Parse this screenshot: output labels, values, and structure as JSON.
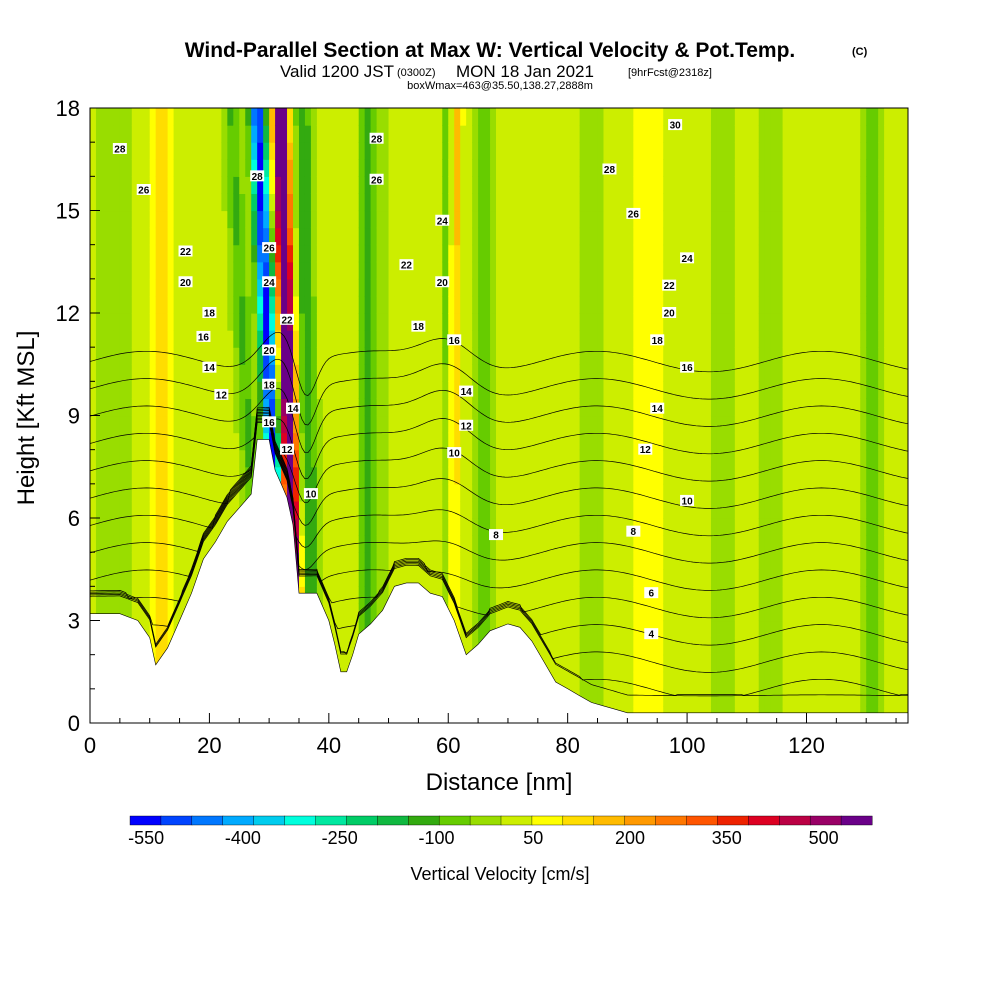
{
  "chart_data": {
    "type": "heatmap",
    "title": "Wind-Parallel Section at Max W: Vertical Velocity & Pot.Temp.",
    "title_mark": "(C)",
    "subtitle_valid": "Valid 1200 JST",
    "subtitle_z": "(0300Z)",
    "subtitle_date": "MON 18 Jan 2021",
    "subtitle_fcst": "[9hrFcst@2318z]",
    "box_line": "boxWmax=463@35.50,138.27,2888m",
    "xlabel": "Distance [nm]",
    "ylabel": "Height [Kft MSL]",
    "xlim": [
      0,
      137
    ],
    "ylim": [
      0,
      18
    ],
    "x_ticks": [
      "0",
      "20",
      "40",
      "60",
      "80",
      "100",
      "120"
    ],
    "x_tick_values": [
      0,
      20,
      40,
      60,
      80,
      100,
      120
    ],
    "y_ticks": [
      "0",
      "3",
      "6",
      "9",
      "12",
      "15",
      "18"
    ],
    "y_tick_values": [
      0,
      3,
      6,
      9,
      12,
      15,
      18
    ],
    "colorbar": {
      "label": "Vertical Velocity [cm/s]",
      "ticks": [
        "-550",
        "-400",
        "-250",
        "-100",
        "50",
        "200",
        "350",
        "500"
      ],
      "tick_values": [
        -550,
        -400,
        -250,
        -100,
        50,
        200,
        350,
        500
      ],
      "range": [
        -575,
        575
      ],
      "colors": [
        "#0000ff",
        "#0044ff",
        "#0077ff",
        "#00aaff",
        "#00ccee",
        "#00ffdd",
        "#00e8a0",
        "#00cc66",
        "#10b840",
        "#33aa10",
        "#66cc00",
        "#99dd00",
        "#ccee00",
        "#ffff00",
        "#ffdd00",
        "#ffbb00",
        "#ff9900",
        "#ff7700",
        "#ff5500",
        "#ee2200",
        "#dd0022",
        "#bb0044",
        "#990066",
        "#6a0088"
      ]
    },
    "terrain_kft": [
      [
        0,
        3.2
      ],
      [
        5,
        3.2
      ],
      [
        8,
        3.0
      ],
      [
        10,
        2.5
      ],
      [
        11,
        1.7
      ],
      [
        13,
        2.2
      ],
      [
        15,
        3.0
      ],
      [
        17,
        3.8
      ],
      [
        19,
        4.8
      ],
      [
        21,
        5.3
      ],
      [
        23,
        5.9
      ],
      [
        25,
        6.3
      ],
      [
        27,
        6.7
      ],
      [
        28,
        8.3
      ],
      [
        30,
        8.3
      ],
      [
        31,
        7.4
      ],
      [
        32,
        7.0
      ],
      [
        33,
        6.6
      ],
      [
        34,
        5.8
      ],
      [
        35,
        3.8
      ],
      [
        36,
        3.8
      ],
      [
        38,
        3.8
      ],
      [
        40,
        3.0
      ],
      [
        41,
        2.3
      ],
      [
        42,
        1.5
      ],
      [
        43,
        1.5
      ],
      [
        44,
        2.0
      ],
      [
        45,
        2.6
      ],
      [
        47,
        2.9
      ],
      [
        49,
        3.3
      ],
      [
        51,
        4.0
      ],
      [
        53,
        4.1
      ],
      [
        55,
        4.1
      ],
      [
        57,
        3.8
      ],
      [
        59,
        3.7
      ],
      [
        61,
        3.0
      ],
      [
        62,
        2.5
      ],
      [
        63,
        2.0
      ],
      [
        65,
        2.3
      ],
      [
        67,
        2.7
      ],
      [
        70,
        2.9
      ],
      [
        72,
        2.8
      ],
      [
        74,
        2.4
      ],
      [
        76,
        1.8
      ],
      [
        78,
        1.2
      ],
      [
        80,
        1.0
      ],
      [
        82,
        0.8
      ],
      [
        84,
        0.6
      ],
      [
        86,
        0.5
      ],
      [
        88,
        0.4
      ],
      [
        90,
        0.3
      ],
      [
        137,
        0.3
      ]
    ],
    "w_features": [
      {
        "x": 33.5,
        "w": 700,
        "sx": 1.2,
        "z0": 7.0,
        "slope": -0.15
      },
      {
        "x": 30.5,
        "w": -560,
        "sx": 1.3,
        "z0": 8.0,
        "slope": -0.25
      },
      {
        "x": 36.8,
        "w": -160,
        "sx": 1.4,
        "z0": 6.5,
        "slope": -0.1
      },
      {
        "x": 26.0,
        "w": -120,
        "sx": 1.5,
        "z0": 10.0,
        "slope": -0.3
      },
      {
        "x": 12.0,
        "w": 130,
        "sx": 1.6,
        "z0": 3.0,
        "slope": 0.0
      },
      {
        "x": 60.5,
        "w": 160,
        "sx": 1.0,
        "z0": 4.0,
        "slope": 0.05
      },
      {
        "x": 66.0,
        "w": -110,
        "sx": 1.3,
        "z0": 8.0,
        "slope": 0.0
      },
      {
        "x": 46.5,
        "w": -130,
        "sx": 1.2,
        "z0": 13.0,
        "slope": 0.0
      },
      {
        "x": 60.0,
        "w": -160,
        "sx": 0.7,
        "z0": 13.0,
        "slope": 0.0
      },
      {
        "x": 48.0,
        "w": -50,
        "sx": 2.0,
        "z0": 8.0,
        "slope": 0.0
      },
      {
        "x": 92.0,
        "w": 60,
        "sx": 1.5,
        "z0": 6.0,
        "slope": 0.0
      },
      {
        "x": 95.0,
        "w": 60,
        "sx": 1.5,
        "z0": 6.0,
        "slope": 0.0
      },
      {
        "x": 106.0,
        "w": -60,
        "sx": 2.0,
        "z0": 8.0,
        "slope": 0.0
      },
      {
        "x": 114.0,
        "w": -50,
        "sx": 2.0,
        "z0": 8.0,
        "slope": 0.0
      },
      {
        "x": 131.0,
        "w": -80,
        "sx": 1.5,
        "z0": 8.0,
        "slope": 0.0
      },
      {
        "x": 4.0,
        "w": -60,
        "sx": 3.0,
        "z0": 8.0,
        "slope": 0.0
      },
      {
        "x": 84.0,
        "w": -50,
        "sx": 2.0,
        "z0": 8.0,
        "slope": 0.0
      }
    ],
    "theta_levels": [
      4,
      6,
      8,
      10,
      12,
      14,
      16,
      18,
      20,
      22,
      24,
      26,
      28,
      30
    ],
    "theta_labels": [
      {
        "x": 5,
        "y": 16.8,
        "t": "28"
      },
      {
        "x": 9,
        "y": 15.6,
        "t": "26"
      },
      {
        "x": 16,
        "y": 13.8,
        "t": "22"
      },
      {
        "x": 16,
        "y": 12.9,
        "t": "20"
      },
      {
        "x": 20,
        "y": 12.0,
        "t": "18"
      },
      {
        "x": 19,
        "y": 11.3,
        "t": "16"
      },
      {
        "x": 20,
        "y": 10.4,
        "t": "14"
      },
      {
        "x": 22,
        "y": 9.6,
        "t": "12"
      },
      {
        "x": 28,
        "y": 16.0,
        "t": "28"
      },
      {
        "x": 30,
        "y": 13.9,
        "t": "26"
      },
      {
        "x": 30,
        "y": 12.9,
        "t": "24"
      },
      {
        "x": 33,
        "y": 11.8,
        "t": "22"
      },
      {
        "x": 30,
        "y": 10.9,
        "t": "20"
      },
      {
        "x": 30,
        "y": 9.9,
        "t": "18"
      },
      {
        "x": 30,
        "y": 8.8,
        "t": "16"
      },
      {
        "x": 34,
        "y": 9.2,
        "t": "14"
      },
      {
        "x": 33,
        "y": 8.0,
        "t": "12"
      },
      {
        "x": 37,
        "y": 6.7,
        "t": "10"
      },
      {
        "x": 48,
        "y": 17.1,
        "t": "28"
      },
      {
        "x": 48,
        "y": 15.9,
        "t": "26"
      },
      {
        "x": 59,
        "y": 14.7,
        "t": "24"
      },
      {
        "x": 53,
        "y": 13.4,
        "t": "22"
      },
      {
        "x": 59,
        "y": 12.9,
        "t": "20"
      },
      {
        "x": 55,
        "y": 11.6,
        "t": "18"
      },
      {
        "x": 61,
        "y": 11.2,
        "t": "16"
      },
      {
        "x": 63,
        "y": 9.7,
        "t": "14"
      },
      {
        "x": 63,
        "y": 8.7,
        "t": "12"
      },
      {
        "x": 61,
        "y": 7.9,
        "t": "10"
      },
      {
        "x": 68,
        "y": 5.5,
        "t": "8"
      },
      {
        "x": 98,
        "y": 17.5,
        "t": "30"
      },
      {
        "x": 87,
        "y": 16.2,
        "t": "28"
      },
      {
        "x": 91,
        "y": 14.9,
        "t": "26"
      },
      {
        "x": 100,
        "y": 13.6,
        "t": "24"
      },
      {
        "x": 97,
        "y": 12.8,
        "t": "22"
      },
      {
        "x": 97,
        "y": 12.0,
        "t": "20"
      },
      {
        "x": 95,
        "y": 11.2,
        "t": "18"
      },
      {
        "x": 100,
        "y": 10.4,
        "t": "16"
      },
      {
        "x": 95,
        "y": 9.2,
        "t": "14"
      },
      {
        "x": 93,
        "y": 8.0,
        "t": "12"
      },
      {
        "x": 100,
        "y": 6.5,
        "t": "10"
      },
      {
        "x": 91,
        "y": 5.6,
        "t": "8"
      },
      {
        "x": 94,
        "y": 3.8,
        "t": "6"
      },
      {
        "x": 94,
        "y": 2.6,
        "t": "4"
      }
    ]
  }
}
